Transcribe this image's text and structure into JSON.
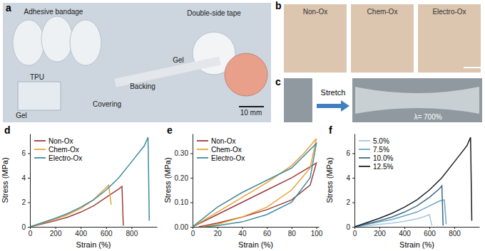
{
  "photo_panels": [
    {
      "letter": "a",
      "texts": [
        "Adhesive bandage",
        "Double-side tape",
        "TPU",
        "Gel",
        "Covering",
        "Backing",
        "Gel",
        "10 mm"
      ]
    },
    {
      "letter": "b",
      "texts": [
        "Non-Ox",
        "Chem-Ox",
        "Electro-Ox"
      ]
    },
    {
      "letter": "c",
      "texts": [
        "Stretch",
        "λ= 700%"
      ]
    }
  ],
  "chart_data": [
    {
      "type": "line",
      "title": "d",
      "xlabel": "Strain (%)",
      "ylabel": "Stress (MPa)",
      "xlim": [
        0,
        1000
      ],
      "ylim": [
        0,
        7.6
      ],
      "xticks": [
        0,
        200,
        400,
        600,
        800
      ],
      "yticks": [
        0,
        2,
        4,
        6
      ],
      "legend": "upper left",
      "series": [
        {
          "name": "Non-Ox",
          "color": "#9b3b3b",
          "x": [
            0,
            100,
            200,
            300,
            400,
            500,
            600,
            700,
            725,
            735
          ],
          "values": [
            0,
            0.25,
            0.5,
            0.8,
            1.2,
            1.7,
            2.4,
            3.1,
            3.3,
            0.1
          ]
        },
        {
          "name": "Chem-Ox",
          "color": "#e9a13b",
          "x": [
            0,
            100,
            200,
            300,
            400,
            500,
            580,
            620,
            640
          ],
          "values": [
            0,
            0.3,
            0.6,
            1.0,
            1.5,
            2.2,
            3.0,
            3.4,
            1.8
          ]
        },
        {
          "name": "Electro-Ox",
          "color": "#3f8c9c",
          "x": [
            0,
            100,
            200,
            300,
            400,
            500,
            600,
            700,
            800,
            900,
            930,
            940
          ],
          "values": [
            0,
            0.35,
            0.7,
            1.1,
            1.6,
            2.2,
            3.0,
            4.0,
            5.3,
            6.6,
            7.3,
            0.5
          ]
        }
      ]
    },
    {
      "type": "line",
      "title": "e",
      "xlabel": "Strain (%)",
      "ylabel": "Stress (MPa)",
      "xlim": [
        0,
        102
      ],
      "ylim": [
        0,
        0.38
      ],
      "xticks": [
        0,
        20,
        40,
        60,
        80,
        100
      ],
      "yticks": [
        {
          "value": 0,
          "label": "0.00"
        },
        {
          "value": 0.1,
          "label": "0.10"
        },
        {
          "value": 0.2,
          "label": "0.20"
        },
        {
          "value": 0.3,
          "label": "0.30"
        }
      ],
      "legend": "upper left",
      "series": [
        {
          "name": "Non-Ox",
          "color": "#9b3b3b",
          "x": [
            0,
            20,
            40,
            60,
            80,
            100,
            95,
            80,
            60,
            40,
            20,
            5
          ],
          "values": [
            0,
            0.05,
            0.1,
            0.15,
            0.2,
            0.26,
            0.17,
            0.11,
            0.07,
            0.04,
            0.015,
            0
          ]
        },
        {
          "name": "Chem-Ox",
          "color": "#e9a13b",
          "x": [
            0,
            20,
            40,
            60,
            80,
            90,
            100,
            95,
            80,
            60,
            40,
            20,
            8
          ],
          "values": [
            0,
            0.06,
            0.12,
            0.18,
            0.25,
            0.3,
            0.36,
            0.24,
            0.15,
            0.08,
            0.04,
            0.01,
            0
          ]
        },
        {
          "name": "Electro-Ox",
          "color": "#3f8c9c",
          "x": [
            0,
            20,
            40,
            60,
            80,
            100,
            95,
            80,
            60,
            40,
            20,
            10
          ],
          "values": [
            0,
            0.08,
            0.14,
            0.19,
            0.24,
            0.34,
            0.2,
            0.1,
            0.05,
            0.02,
            0.005,
            0
          ]
        }
      ]
    },
    {
      "type": "line",
      "title": "f",
      "xlabel": "Strain (%)",
      "ylabel": "Stress (MPa)",
      "xlim": [
        0,
        1000
      ],
      "ylim": [
        0,
        7.6
      ],
      "xticks": [
        0,
        200,
        400,
        600,
        800
      ],
      "yticks": [
        0,
        2,
        4,
        6
      ],
      "legend": "upper left",
      "series": [
        {
          "name": "5.0%",
          "color": "#a7c9de",
          "x": [
            0,
            100,
            200,
            300,
            400,
            500,
            550,
            600,
            620
          ],
          "values": [
            0,
            0.1,
            0.2,
            0.3,
            0.45,
            0.65,
            0.8,
            1.0,
            0.1
          ]
        },
        {
          "name": "7.5%",
          "color": "#6fa3c2",
          "x": [
            0,
            100,
            200,
            300,
            400,
            500,
            600,
            680,
            720,
            735
          ],
          "values": [
            0,
            0.2,
            0.4,
            0.6,
            0.9,
            1.2,
            1.7,
            2.1,
            2.2,
            0.2
          ]
        },
        {
          "name": "10.0%",
          "color": "#3b6a85",
          "x": [
            0,
            100,
            200,
            300,
            400,
            500,
            600,
            680,
            700,
            710
          ],
          "values": [
            0,
            0.25,
            0.5,
            0.8,
            1.2,
            1.7,
            2.4,
            3.1,
            3.35,
            0.1
          ]
        },
        {
          "name": "12.5%",
          "color": "#1a1f24",
          "x": [
            0,
            100,
            200,
            300,
            400,
            500,
            600,
            700,
            800,
            900,
            930,
            940
          ],
          "values": [
            0,
            0.35,
            0.7,
            1.1,
            1.6,
            2.2,
            3.0,
            4.0,
            5.3,
            6.6,
            7.3,
            0.5
          ]
        }
      ]
    }
  ]
}
